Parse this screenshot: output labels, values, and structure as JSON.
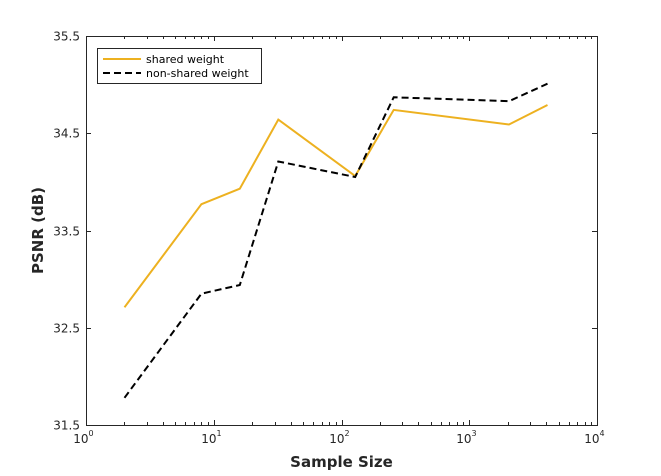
{
  "chart_data": {
    "type": "line",
    "title": "",
    "xlabel": "Sample Size",
    "ylabel": "PSNR (dB)",
    "xscale": "log",
    "xlim": [
      1,
      10000
    ],
    "ylim": [
      31.5,
      35.5
    ],
    "grid": false,
    "legend_position": "top-left",
    "x_ticks": [
      {
        "value": 1,
        "base": "10",
        "exp": "0"
      },
      {
        "value": 10,
        "base": "10",
        "exp": "1"
      },
      {
        "value": 100,
        "base": "10",
        "exp": "2"
      },
      {
        "value": 1000,
        "base": "10",
        "exp": "3"
      },
      {
        "value": 10000,
        "base": "10",
        "exp": "4"
      }
    ],
    "y_ticks": [
      {
        "value": 31.5,
        "label": "31.5"
      },
      {
        "value": 32.5,
        "label": "32.5"
      },
      {
        "value": 33.5,
        "label": "33.5"
      },
      {
        "value": 34.5,
        "label": "34.5"
      },
      {
        "value": 35.5,
        "label": "35.5"
      }
    ],
    "series": [
      {
        "name": "shared weight",
        "color": "#EDB120",
        "style": "solid",
        "x": [
          2,
          8,
          16,
          32,
          128,
          256,
          2048,
          4096
        ],
        "y": [
          32.71,
          33.77,
          33.93,
          34.64,
          34.06,
          34.74,
          34.59,
          34.79
        ]
      },
      {
        "name": "non-shared weight",
        "color": "#000000",
        "style": "dashed",
        "x": [
          2,
          8,
          16,
          32,
          128,
          256,
          2048,
          4096
        ],
        "y": [
          31.78,
          32.85,
          32.94,
          34.21,
          34.05,
          34.87,
          34.83,
          35.01
        ]
      }
    ]
  }
}
